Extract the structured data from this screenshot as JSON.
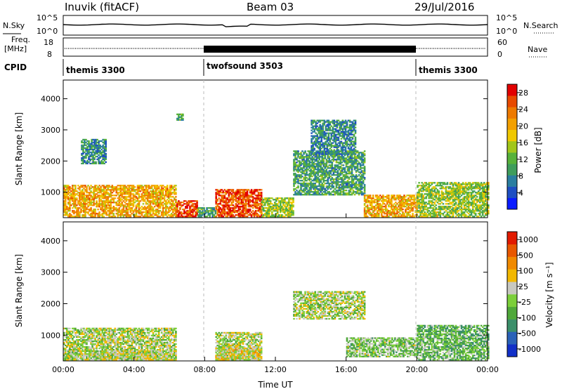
{
  "header": {
    "station": "Inuvik (fitACF)",
    "beam": "Beam 03",
    "date": "29/Jul/2016"
  },
  "strips": {
    "nsky_label": "N.Sky",
    "nsky_ticks": [
      "10^5",
      "10^0"
    ],
    "nsearch_label": "N.Search",
    "freq_label": "Freq.",
    "freq_unit": "[MHz]",
    "freq_ticks": [
      18,
      8
    ],
    "nave_label": "Nave",
    "nave_ticks": [
      60,
      0
    ],
    "cpid_label": "CPID",
    "cpid_segments": [
      {
        "name": "themis 3300",
        "start_hour": 0
      },
      {
        "name": "twofsound 3503",
        "start_hour": 8
      },
      {
        "name": "themis 3300",
        "start_hour": 20
      }
    ]
  },
  "chart_data": [
    {
      "type": "heatmap",
      "panel": "power",
      "ylabel": "Slant Range [km]",
      "yticks": [
        1000,
        2000,
        3000,
        4000
      ],
      "ylim": [
        180,
        4600
      ],
      "xlim_hours": [
        0,
        24
      ],
      "colorbar": {
        "label": "Power [dB]",
        "ticks": [
          4,
          8,
          12,
          16,
          20,
          24,
          28
        ],
        "range": [
          0,
          30
        ],
        "colors": [
          "#0a1cff",
          "#1e4fc2",
          "#2a7ea0",
          "#3f9d5c",
          "#57b23a",
          "#a2c61a",
          "#f0c800",
          "#f3a000",
          "#ee7a00",
          "#e84a00",
          "#e20000"
        ]
      },
      "regions": [
        {
          "t": [
            0.0,
            6.4
          ],
          "r": [
            200,
            1200
          ],
          "v": 20
        },
        {
          "t": [
            6.4,
            7.6
          ],
          "r": [
            200,
            700
          ],
          "v": 26
        },
        {
          "t": [
            7.6,
            8.6
          ],
          "r": [
            200,
            500
          ],
          "v": 10
        },
        {
          "t": [
            8.6,
            11.2
          ],
          "r": [
            200,
            1100
          ],
          "v": 26
        },
        {
          "t": [
            11.2,
            13.0
          ],
          "r": [
            200,
            800
          ],
          "v": 14
        },
        {
          "t": [
            13.0,
            17.0
          ],
          "r": [
            900,
            2300
          ],
          "v": 10
        },
        {
          "t": [
            14.0,
            16.5
          ],
          "r": [
            2200,
            3300
          ],
          "v": 8
        },
        {
          "t": [
            17.0,
            20.0
          ],
          "r": [
            200,
            900
          ],
          "v": 20
        },
        {
          "t": [
            20.0,
            24.0
          ],
          "r": [
            200,
            1300
          ],
          "v": 14
        },
        {
          "t": [
            1.0,
            2.4
          ],
          "r": [
            1900,
            2700
          ],
          "v": 8
        },
        {
          "t": [
            6.4,
            6.8
          ],
          "r": [
            3300,
            3500
          ],
          "v": 12
        }
      ]
    },
    {
      "type": "heatmap",
      "panel": "velocity",
      "ylabel": "Slant Range [km]",
      "yticks": [
        1000,
        2000,
        3000,
        4000
      ],
      "ylim": [
        180,
        4600
      ],
      "xlim_hours": [
        0,
        24
      ],
      "xlabel": "Time UT",
      "xticks": [
        "00:00",
        "04:00",
        "08:00",
        "12:00",
        "16:00",
        "20:00",
        "00:00"
      ],
      "colorbar": {
        "label": "Velocity [m s⁻¹]",
        "ticks": [
          "1000",
          "500",
          "100",
          "25",
          "-25",
          "-100",
          "-500",
          "-1000"
        ],
        "range": [
          -1200,
          1200
        ],
        "colors": [
          "#1230c8",
          "#2a62b8",
          "#3b8f6a",
          "#4fa83a",
          "#7ccf3a",
          "#c8c8c0",
          "#f2b800",
          "#f08a00",
          "#e85800",
          "#e21a00"
        ]
      },
      "regions": [
        {
          "t": [
            0.0,
            6.4
          ],
          "r": [
            200,
            1200
          ],
          "v": 0
        },
        {
          "t": [
            0.0,
            6.4
          ],
          "r": [
            200,
            500
          ],
          "v": 60
        },
        {
          "t": [
            8.6,
            11.2
          ],
          "r": [
            200,
            1100
          ],
          "v": 0
        },
        {
          "t": [
            8.6,
            11.2
          ],
          "r": [
            200,
            600
          ],
          "v": 150
        },
        {
          "t": [
            13.0,
            17.0
          ],
          "r": [
            1500,
            2400
          ],
          "v": 0
        },
        {
          "t": [
            16.0,
            20.0
          ],
          "r": [
            300,
            900
          ],
          "v": -150
        },
        {
          "t": [
            20.0,
            24.0
          ],
          "r": [
            200,
            1300
          ],
          "v": -300
        }
      ]
    }
  ]
}
